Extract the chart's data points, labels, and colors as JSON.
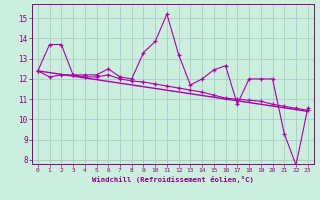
{
  "background_color": "#cceedd",
  "grid_color": "#aacccc",
  "line_color": "#aa00aa",
  "spine_color": "#880088",
  "tick_color": "#880088",
  "label_color": "#880088",
  "xlim": [
    -0.5,
    23.5
  ],
  "ylim": [
    7.8,
    15.7
  ],
  "yticks": [
    8,
    9,
    10,
    11,
    12,
    13,
    14,
    15
  ],
  "xticks": [
    0,
    1,
    2,
    3,
    4,
    5,
    6,
    7,
    8,
    9,
    10,
    11,
    12,
    13,
    14,
    15,
    16,
    17,
    18,
    19,
    20,
    21,
    22,
    23
  ],
  "xlabel": "Windchill (Refroidissement éolien,°C)",
  "series1_x": [
    0,
    1,
    2,
    3,
    4,
    5,
    6,
    7,
    8,
    9,
    10,
    11,
    12,
    13,
    14,
    15,
    16,
    17,
    18,
    19,
    20,
    21,
    22,
    23
  ],
  "series1_y": [
    12.4,
    13.7,
    13.7,
    12.2,
    12.2,
    12.2,
    12.5,
    12.1,
    12.0,
    13.3,
    13.85,
    15.2,
    13.2,
    11.7,
    12.0,
    12.45,
    12.65,
    10.75,
    12.0,
    12.0,
    12.0,
    9.3,
    7.75,
    10.55
  ],
  "series2_x": [
    0,
    1,
    2,
    3,
    4,
    5,
    6,
    7,
    8,
    9,
    10,
    11,
    12,
    13,
    14,
    15,
    16,
    17,
    18,
    19,
    20,
    21,
    22,
    23
  ],
  "series2_y": [
    12.4,
    12.1,
    12.2,
    12.2,
    12.1,
    12.1,
    12.2,
    12.0,
    11.9,
    11.85,
    11.75,
    11.65,
    11.55,
    11.45,
    11.35,
    11.2,
    11.05,
    11.0,
    10.95,
    10.9,
    10.75,
    10.65,
    10.55,
    10.45
  ],
  "series3_x": [
    0,
    23
  ],
  "series3_y": [
    12.4,
    10.4
  ]
}
